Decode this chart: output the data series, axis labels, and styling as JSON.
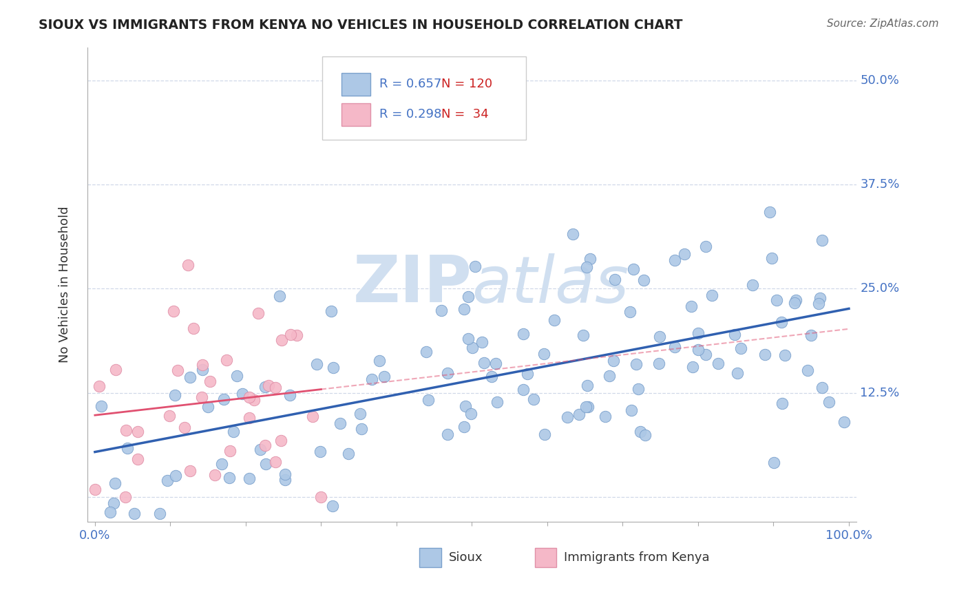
{
  "title": "SIOUX VS IMMIGRANTS FROM KENYA NO VEHICLES IN HOUSEHOLD CORRELATION CHART",
  "source": "Source: ZipAtlas.com",
  "ylabel": "No Vehicles in Household",
  "xlim": [
    -1,
    101
  ],
  "ylim": [
    -3,
    54
  ],
  "ytick_vals": [
    0,
    12.5,
    25.0,
    37.5,
    50.0
  ],
  "ytick_labels": [
    "",
    "12.5%",
    "25.0%",
    "37.5%",
    "50.0%"
  ],
  "xtick_vals": [
    0,
    10,
    20,
    30,
    40,
    50,
    60,
    70,
    80,
    90,
    100
  ],
  "xtick_labels": [
    "0.0%",
    "",
    "",
    "",
    "",
    "",
    "",
    "",
    "",
    "",
    "100.0%"
  ],
  "legend_r1": "R = 0.657",
  "legend_n1": "N = 120",
  "legend_r2": "R = 0.298",
  "legend_n2": "N =  34",
  "sioux_color": "#adc8e6",
  "kenya_color": "#f5b8c8",
  "sioux_line_color": "#3060b0",
  "kenya_line_color": "#e05070",
  "tick_label_color": "#4472c4",
  "watermark_color": "#d0dff0",
  "background_color": "#ffffff",
  "grid_color": "#d0d8e8",
  "sioux_edge_color": "#7aa0cc",
  "kenya_edge_color": "#e090a8"
}
